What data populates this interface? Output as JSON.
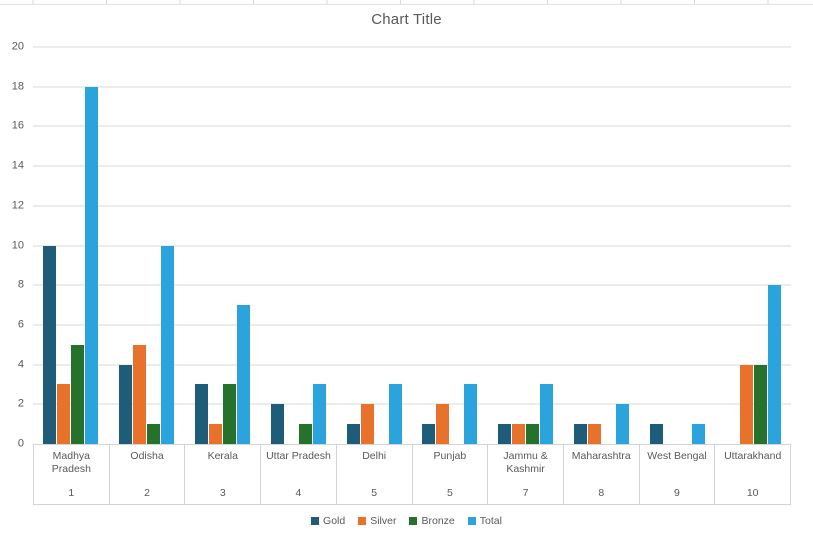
{
  "chart_data": {
    "type": "bar",
    "title": "Chart Title",
    "categories": [
      "Madhya Pradesh",
      "Odisha",
      "Kerala",
      "Uttar Pradesh",
      "Delhi",
      "Punjab",
      "Jammu & Kashmir",
      "Maharashtra",
      "West Bengal",
      "Uttarakhand"
    ],
    "rank_labels": [
      "1",
      "2",
      "3",
      "4",
      "5",
      "5",
      "7",
      "8",
      "9",
      "10"
    ],
    "series": [
      {
        "name": "Gold",
        "color": "#1F5C7A",
        "values": [
          10,
          4,
          3,
          2,
          1,
          1,
          1,
          1,
          1,
          0
        ]
      },
      {
        "name": "Silver",
        "color": "#E8712B",
        "values": [
          3,
          5,
          1,
          0,
          2,
          2,
          1,
          1,
          0,
          4
        ]
      },
      {
        "name": "Bronze",
        "color": "#26712B",
        "values": [
          5,
          1,
          3,
          1,
          0,
          0,
          1,
          0,
          0,
          4
        ]
      },
      {
        "name": "Total",
        "color": "#2BA3DC",
        "values": [
          18,
          10,
          7,
          3,
          3,
          3,
          3,
          2,
          1,
          8
        ]
      }
    ],
    "xlabel": "",
    "ylabel": "",
    "ylim": [
      0,
      20
    ],
    "ytick_step": 2,
    "grid": true,
    "legend_position": "bottom",
    "colors": {
      "gridline": "#D9D9D9",
      "axis_table_border": "#D3D3D3",
      "text": "#595959"
    }
  }
}
